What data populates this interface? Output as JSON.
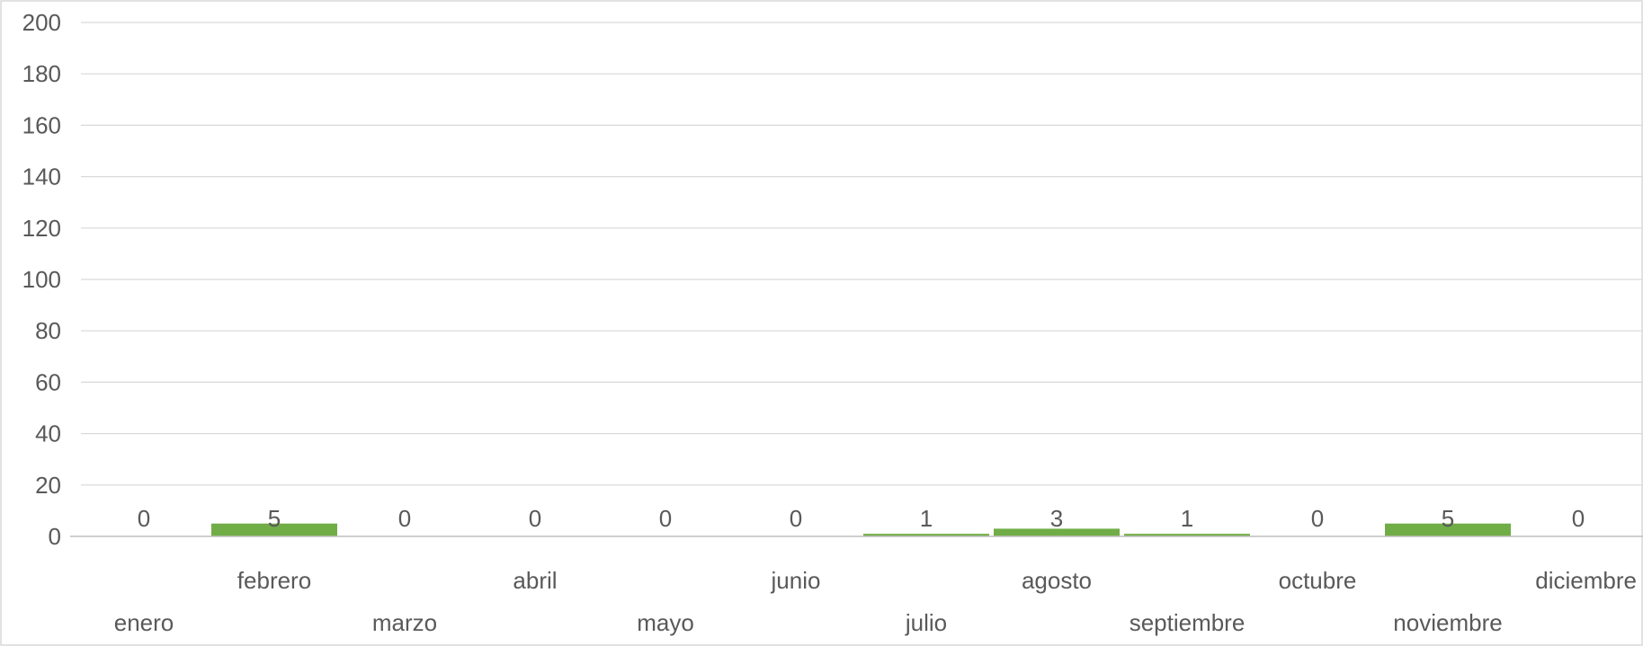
{
  "chart_data": {
    "type": "bar",
    "categories": [
      "enero",
      "febrero",
      "marzo",
      "abril",
      "mayo",
      "junio",
      "julio",
      "agosto",
      "septiembre",
      "octubre",
      "noviembre",
      "diciembre"
    ],
    "values": [
      0,
      5,
      0,
      0,
      0,
      0,
      1,
      3,
      1,
      0,
      5,
      0
    ],
    "data_labels": [
      "0",
      "5",
      "0",
      "0",
      "0",
      "0",
      "1",
      "3",
      "1",
      "0",
      "5",
      "0"
    ],
    "y_ticks": [
      "0",
      "20",
      "40",
      "60",
      "80",
      "100",
      "120",
      "140",
      "160",
      "180",
      "200"
    ],
    "ylim": [
      0,
      200
    ],
    "grid": true,
    "legend": "none",
    "bar_color": "#70ad47",
    "title": "",
    "xlabel": "",
    "ylabel": ""
  }
}
